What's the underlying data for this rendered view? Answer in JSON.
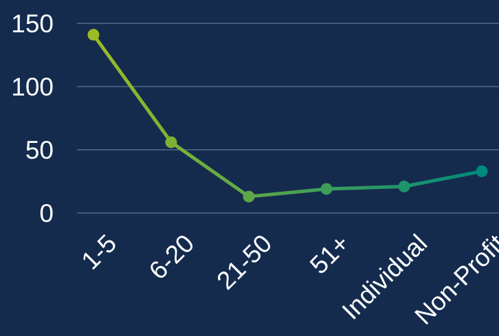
{
  "chart_data": {
    "type": "line",
    "categories": [
      "1-5",
      "6-20",
      "21-50",
      "51+",
      "Individual",
      "Non-Profit"
    ],
    "series": [
      {
        "values": [
          141,
          56,
          13,
          19,
          21,
          33
        ]
      }
    ],
    "ylim": [
      0,
      150
    ],
    "yticks": [
      0,
      50,
      100,
      150
    ],
    "grid": true,
    "legend": "none"
  },
  "colors": {
    "background": "#142b4e",
    "gridline": "#5f7896",
    "text": "#ffffff",
    "line_start": "#9bbb24",
    "line_end": "#008a7d"
  }
}
